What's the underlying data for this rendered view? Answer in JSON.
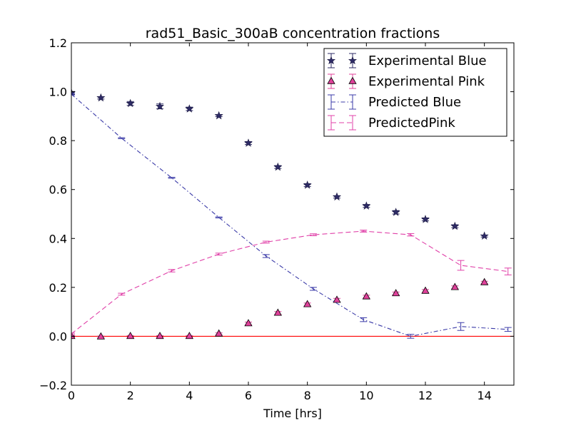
{
  "chart_data": {
    "type": "line",
    "title": "rad51_Basic_300aB concentration fractions",
    "xlabel": "Time [hrs]",
    "ylabel": "",
    "xlim": [
      0,
      15
    ],
    "ylim": [
      -0.2,
      1.2
    ],
    "x_ticks": [
      0,
      2,
      4,
      6,
      8,
      10,
      12,
      14
    ],
    "x_tick_labels": [
      "0",
      "2",
      "4",
      "6",
      "8",
      "10",
      "12",
      "14"
    ],
    "y_ticks": [
      -0.2,
      0.0,
      0.2,
      0.4,
      0.6,
      0.8,
      1.0,
      1.2
    ],
    "y_tick_labels": [
      "−0.2",
      "0.0",
      "0.2",
      "0.4",
      "0.6",
      "0.8",
      "1.0",
      "1.2"
    ],
    "grid": false,
    "legend_position": "top-right",
    "reference_line": {
      "y": 0.0,
      "color": "#ff0000"
    },
    "series": [
      {
        "name": "Experimental Blue",
        "style": "markers",
        "marker": "star",
        "color": "#2e2b66",
        "x": [
          0,
          1,
          2,
          3,
          4,
          5,
          6,
          7,
          8,
          9,
          10,
          11,
          12,
          13,
          14
        ],
        "y": [
          0.995,
          0.975,
          0.952,
          0.94,
          0.93,
          0.902,
          0.79,
          0.692,
          0.618,
          0.57,
          0.533,
          0.507,
          0.478,
          0.45,
          0.41
        ],
        "err": [
          0.006,
          0.005,
          0.008,
          0.01,
          0.007,
          0.004,
          0.006,
          0.006,
          0.006,
          0.005,
          0.006,
          0.007,
          0.006,
          0.006,
          0.004
        ]
      },
      {
        "name": "Experimental Pink",
        "style": "markers",
        "marker": "triangle",
        "color": "#e0409a",
        "x": [
          0,
          1,
          2,
          3,
          4,
          5,
          6,
          7,
          8,
          9,
          10,
          11,
          12,
          13,
          14
        ],
        "y": [
          0.0,
          -0.002,
          0.0,
          0.0,
          0.0,
          0.01,
          0.052,
          0.095,
          0.13,
          0.148,
          0.162,
          0.175,
          0.185,
          0.2,
          0.22
        ],
        "err": [
          0.003,
          0.003,
          0.003,
          0.003,
          0.003,
          0.004,
          0.006,
          0.006,
          0.006,
          0.007,
          0.006,
          0.006,
          0.006,
          0.006,
          0.005
        ]
      },
      {
        "name": "Predicted Blue",
        "style": "dashdot",
        "color": "#3b3ba8",
        "x": [
          0,
          1.7,
          3.4,
          5,
          6.6,
          8.2,
          9.9,
          11.5,
          13.2,
          14.8
        ],
        "y": [
          0.99,
          0.81,
          0.648,
          0.486,
          0.328,
          0.194,
          0.068,
          0.0,
          0.04,
          0.028
        ],
        "err": [
          0.003,
          0.002,
          0.002,
          0.002,
          0.006,
          0.006,
          0.008,
          0.008,
          0.016,
          0.008
        ]
      },
      {
        "name": "PredictedPink",
        "style": "dashed",
        "color": "#e040a8",
        "x": [
          0,
          1.7,
          3.4,
          5,
          6.6,
          8.2,
          9.9,
          11.5,
          13.2,
          14.8
        ],
        "y": [
          0.01,
          0.172,
          0.268,
          0.336,
          0.385,
          0.415,
          0.43,
          0.415,
          0.29,
          0.265
        ],
        "err": [
          0.003,
          0.004,
          0.005,
          0.004,
          0.004,
          0.004,
          0.004,
          0.005,
          0.02,
          0.014
        ]
      }
    ]
  }
}
